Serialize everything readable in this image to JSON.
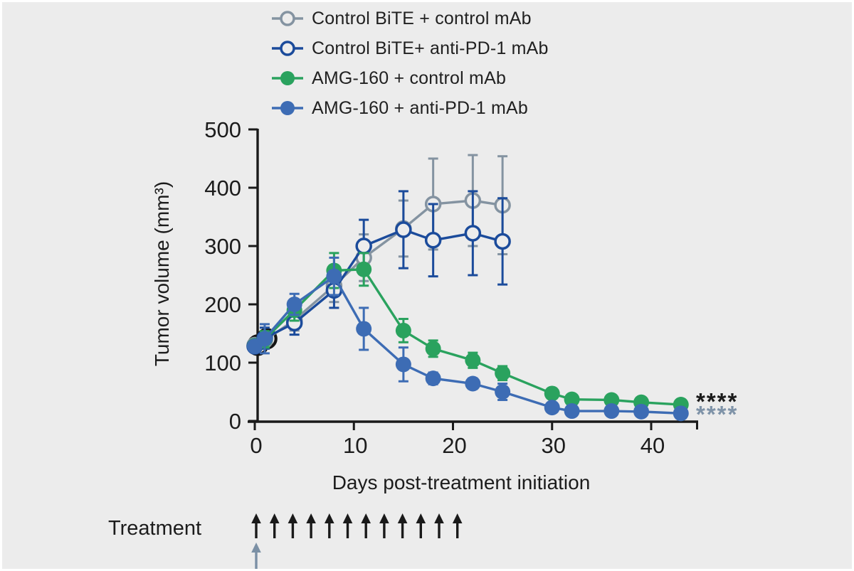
{
  "figure": {
    "background": "#ececec",
    "text_color": "#1c1c1c",
    "axis_color": "#1a1a1a"
  },
  "legend": {
    "items": [
      {
        "label": "Control BiTE + control mAb",
        "marker": "open",
        "color": "#8493a1"
      },
      {
        "label": "Control BiTE+ anti-PD-1 mAb",
        "marker": "open",
        "color": "#1b4b9b"
      },
      {
        "label": "AMG-160 + control mAb",
        "marker": "filled",
        "color": "#2aa25e"
      },
      {
        "label": "AMG-160 + anti-PD-1 mAb",
        "marker": "filled",
        "color": "#3d6cb4"
      }
    ]
  },
  "chart_data": {
    "type": "line",
    "title": "",
    "xlabel": "Days post-treatment initiation",
    "ylabel": "Tumor volume (mm³)",
    "x_ticks": [
      0,
      10,
      20,
      30,
      40
    ],
    "y_ticks": [
      0,
      100,
      200,
      300,
      400,
      500
    ],
    "xlim": [
      0,
      45
    ],
    "ylim": [
      0,
      500
    ],
    "grid": false,
    "legend_position": "top-center",
    "point_format": "[day, tumor_volume_mm3, sem]",
    "series": [
      {
        "name": "Control BiTE + control mAb",
        "marker": "open",
        "color": "#8493a1",
        "points": [
          [
            0,
            130,
            8
          ],
          [
            1,
            138,
            14
          ],
          [
            4,
            173,
            18
          ],
          [
            8,
            232,
            28
          ],
          [
            11,
            280,
            40
          ],
          [
            15,
            330,
            48
          ],
          [
            18,
            372,
            78
          ],
          [
            22,
            378,
            78
          ],
          [
            25,
            370,
            84
          ]
        ]
      },
      {
        "name": "Control BiTE+ anti-PD-1 mAb",
        "marker": "open",
        "color": "#1b4b9b",
        "points": [
          [
            0,
            128,
            8
          ],
          [
            1,
            142,
            18
          ],
          [
            4,
            168,
            20
          ],
          [
            8,
            224,
            30
          ],
          [
            11,
            300,
            45
          ],
          [
            15,
            328,
            66
          ],
          [
            18,
            310,
            62
          ],
          [
            22,
            322,
            72
          ],
          [
            25,
            308,
            74
          ]
        ]
      },
      {
        "name": "AMG-160 + control mAb",
        "marker": "filled",
        "color": "#2aa25e",
        "points": [
          [
            0,
            129,
            8
          ],
          [
            1,
            140,
            14
          ],
          [
            4,
            190,
            18
          ],
          [
            8,
            258,
            30
          ],
          [
            11,
            260,
            28
          ],
          [
            15,
            155,
            20
          ],
          [
            18,
            124,
            14
          ],
          [
            22,
            104,
            13
          ],
          [
            25,
            82,
            12
          ],
          [
            30,
            47,
            8
          ],
          [
            32,
            37,
            7
          ],
          [
            36,
            36,
            7
          ],
          [
            39,
            32,
            6
          ],
          [
            43,
            28,
            6
          ]
        ]
      },
      {
        "name": "AMG-160 + anti-PD-1 mAb",
        "marker": "filled",
        "color": "#3d6cb4",
        "points": [
          [
            0,
            128,
            8
          ],
          [
            1,
            141,
            25
          ],
          [
            4,
            200,
            18
          ],
          [
            8,
            248,
            32
          ],
          [
            11,
            158,
            36
          ],
          [
            15,
            97,
            29
          ],
          [
            18,
            73,
            10
          ],
          [
            22,
            64,
            9
          ],
          [
            25,
            50,
            14
          ],
          [
            30,
            23,
            6
          ],
          [
            32,
            17,
            5
          ],
          [
            36,
            17,
            5
          ],
          [
            39,
            16,
            5
          ],
          [
            43,
            13,
            5
          ]
        ]
      }
    ],
    "baseline_overlap_rings": [
      [
        0.3,
        130
      ],
      [
        1.2,
        141
      ]
    ]
  },
  "annotations": {
    "treatment_label": "Treatment",
    "black_arrow_count": 12,
    "gray_arrow_count": 1,
    "black_arrow_color": "#1a1a1a",
    "gray_arrow_color": "#7b90a5",
    "significance": [
      {
        "text": "****",
        "color": "#1a1a1a"
      },
      {
        "text": "****",
        "color": "#7f93a8"
      }
    ]
  }
}
